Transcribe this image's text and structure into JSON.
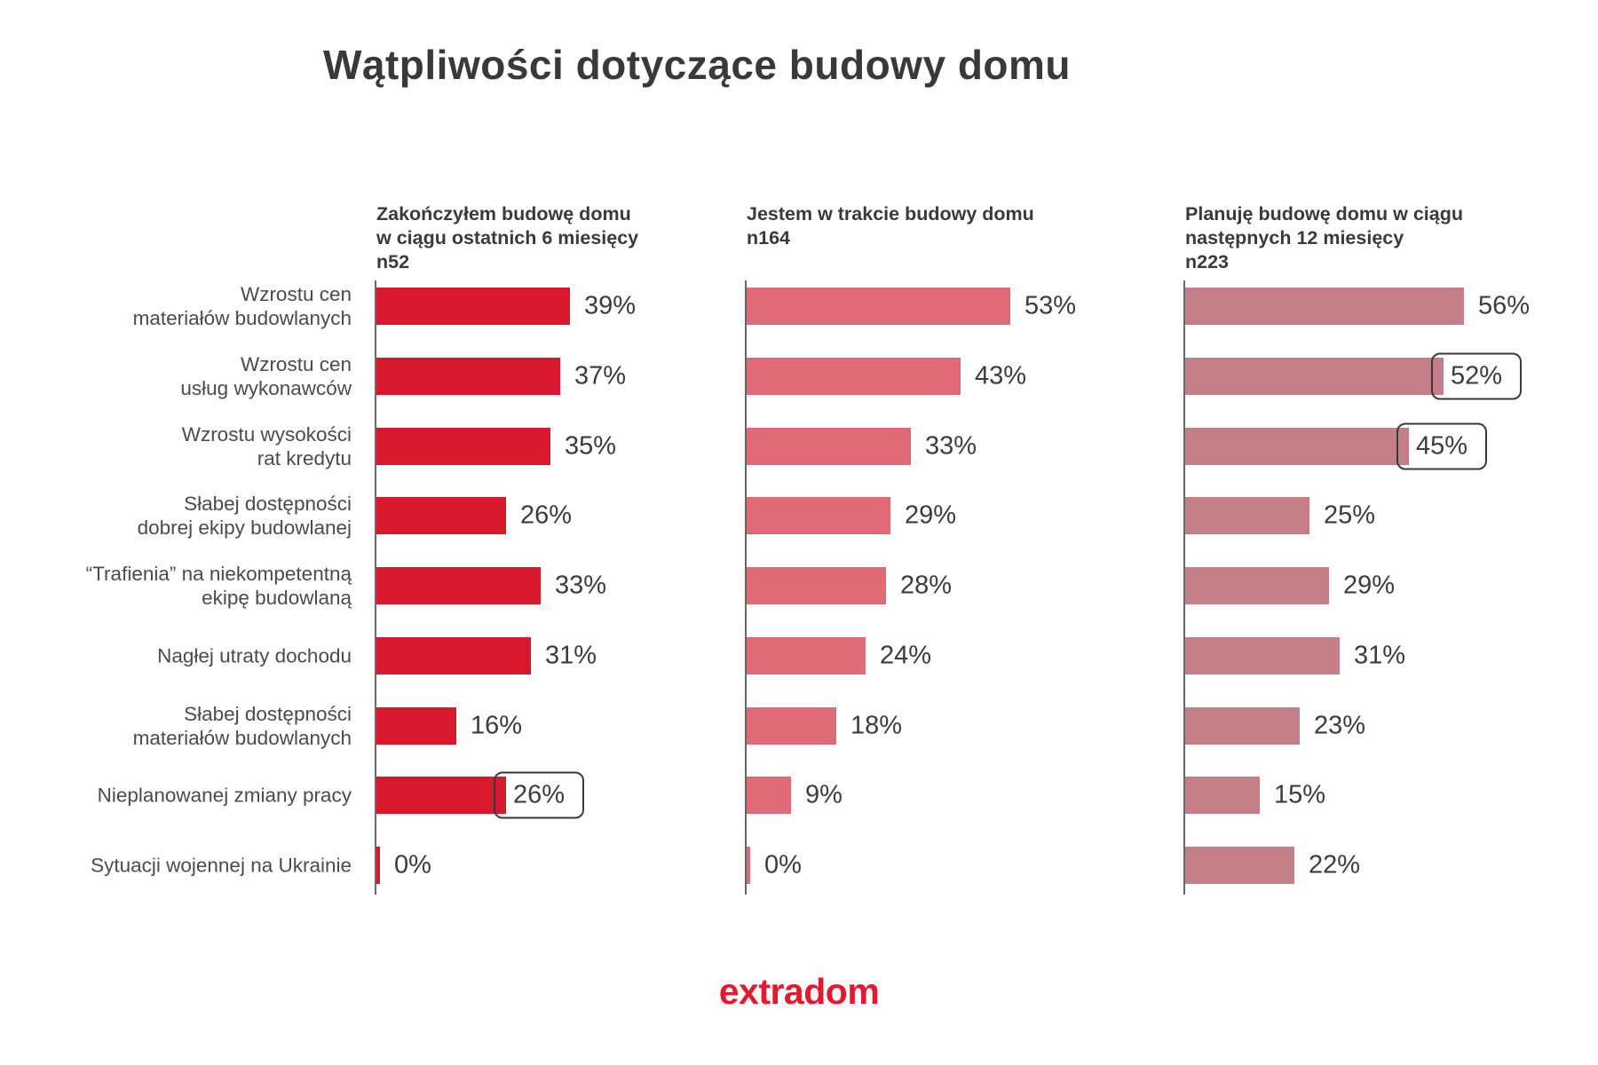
{
  "title": "Wątpliwości dotyczące budowy domu",
  "logo_text": "extradom",
  "colors": {
    "series1_red": "#D8192D",
    "series2_salmon": "#E06A78",
    "series3_mauve": "#C47E87",
    "title_text": "#39383B",
    "category_text": "#4B4A4E",
    "value_text": "#3C3B3E",
    "axis_line": "#67666B",
    "highlight_box_border": "#3A393C",
    "logo_red": "#E5192D",
    "background": "#FFFFFF"
  },
  "chart_data": {
    "type": "bar",
    "orientation": "horizontal",
    "value_suffix": "%",
    "xlim": [
      0,
      60
    ],
    "grid": false,
    "legend_position": "column-headers-top",
    "categories": [
      "Wzrostu cen\nmateriałów budowlanych",
      "Wzrostu cen\nusług wykonawców",
      "Wzrostu wysokości\nrat kredytu",
      "Słabej dostępności\ndobrej ekipy budowlanej",
      "“Trafienia” na niekompetentną\nekipę budowlaną",
      "Nagłej utraty dochodu",
      "Słabej dostępności\nmateriałów budowlanych",
      "Nieplanowanej zmiany pracy",
      "Sytuacji wojennej na Ukrainie"
    ],
    "series": [
      {
        "name": "Zakończyłem budowę domu w ciągu ostatnich 6 miesięcy",
        "header": "Zakończyłem budowę domu\nw ciągu ostatnich 6 miesięcy\nn52",
        "sample_n": 52,
        "color": "#D8192D",
        "values": [
          39,
          37,
          35,
          26,
          33,
          31,
          16,
          26,
          0
        ],
        "boxed_indices": [
          7
        ]
      },
      {
        "name": "Jestem w trakcie budowy domu",
        "header": "Jestem w trakcie budowy domu\nn164",
        "sample_n": 164,
        "color": "#E06A78",
        "values": [
          53,
          43,
          33,
          29,
          28,
          24,
          18,
          9,
          0
        ],
        "boxed_indices": []
      },
      {
        "name": "Planuję budowę domu w ciągu następnych 12 miesięcy",
        "header": "Planuję budowę domu w ciągu\nnastępnych 12 miesięcy\nn223",
        "sample_n": 223,
        "color": "#C47E87",
        "values": [
          56,
          52,
          45,
          25,
          29,
          31,
          23,
          15,
          22
        ],
        "boxed_indices": [
          1,
          2
        ]
      }
    ]
  }
}
